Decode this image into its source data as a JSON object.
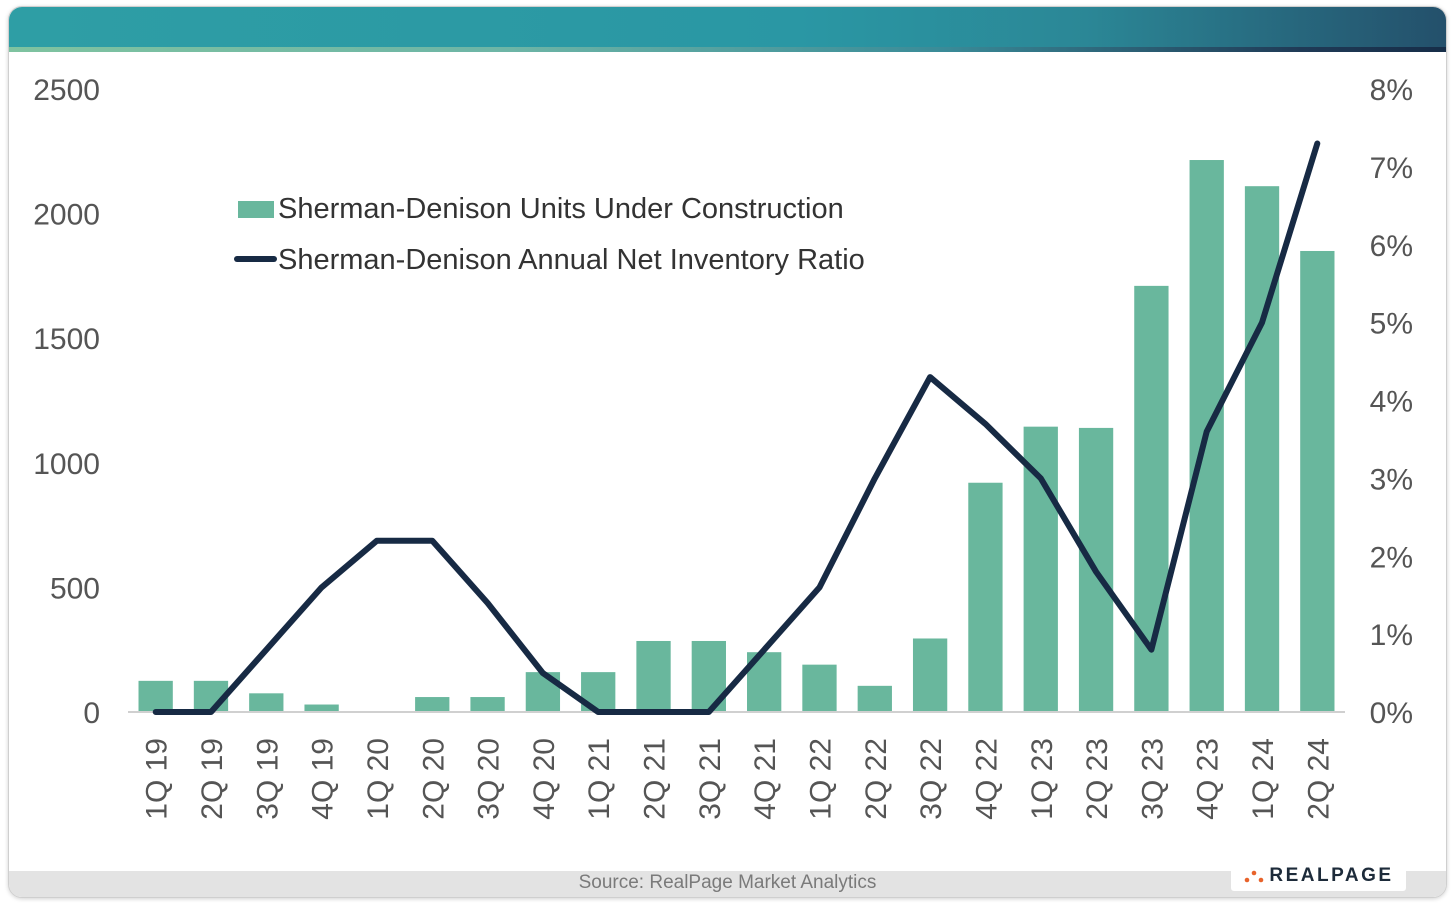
{
  "colors": {
    "bar": "#69b79d",
    "line": "#172a44",
    "axis": "#d0d0d0",
    "text": "#555555"
  },
  "footer": {
    "source": "Source: RealPage Market Analytics",
    "logo": "REALPAGE"
  },
  "chart_data": {
    "type": "bar",
    "title": "",
    "categories": [
      "1Q 19",
      "2Q 19",
      "3Q 19",
      "4Q 19",
      "1Q 20",
      "2Q 20",
      "3Q 20",
      "4Q 20",
      "1Q 21",
      "2Q 21",
      "3Q 21",
      "4Q 21",
      "1Q 22",
      "2Q 22",
      "3Q 22",
      "4Q 22",
      "1Q 23",
      "2Q 23",
      "3Q 23",
      "4Q 23",
      "1Q 24",
      "2Q 24"
    ],
    "series": [
      {
        "name": "Sherman-Denison Units Under Construction",
        "type": "bar",
        "axis": "left",
        "values": [
          125,
          125,
          75,
          30,
          0,
          60,
          60,
          160,
          160,
          285,
          285,
          240,
          190,
          105,
          295,
          920,
          1145,
          1140,
          1710,
          2215,
          2110,
          1850
        ]
      },
      {
        "name": "Sherman-Denison Annual Net Inventory Ratio",
        "type": "line",
        "axis": "right",
        "values": [
          0.0,
          0.0,
          0.8,
          1.6,
          2.2,
          2.2,
          1.4,
          0.5,
          0.0,
          0.0,
          0.0,
          0.8,
          1.6,
          3.0,
          4.3,
          3.7,
          3.0,
          1.8,
          0.8,
          3.6,
          5.0,
          7.3
        ]
      }
    ],
    "y_left": {
      "min": 0,
      "max": 2500,
      "ticks": [
        "0",
        "500",
        "1000",
        "1500",
        "2000",
        "2500"
      ]
    },
    "y_right": {
      "min": 0,
      "max": 8,
      "ticks": [
        "0%",
        "1%",
        "2%",
        "3%",
        "4%",
        "5%",
        "6%",
        "7%",
        "8%"
      ]
    },
    "legend": {
      "position": "top-left"
    }
  }
}
